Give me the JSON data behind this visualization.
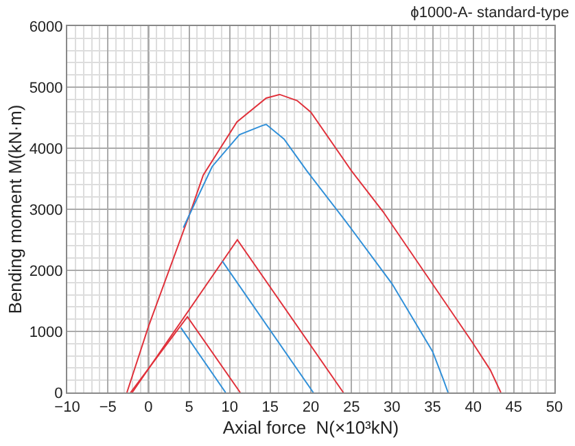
{
  "chart_data": {
    "type": "line",
    "title": "ϕ1000-A- standard-type",
    "xlabel": "Axial force  N(×10³kN)",
    "ylabel": "Bending moment M(kN·m)",
    "xlim": [
      -10,
      50
    ],
    "xticks": [
      -10,
      -5,
      0,
      5,
      10,
      15,
      20,
      25,
      30,
      35,
      40,
      45,
      50
    ],
    "ylim": [
      0,
      6000
    ],
    "yticks": [
      0,
      1000,
      2000,
      3000,
      4000,
      5000,
      6000
    ],
    "grid": true,
    "marker": "none",
    "line_style": "solid",
    "ref_lines": [
      {
        "axis": "x",
        "value": 0,
        "color": "#333333"
      }
    ],
    "series": [
      {
        "color": "#e0303a",
        "x": [
          -2.65,
          0,
          5.4,
          6.75,
          10.9,
          14.5,
          16.15,
          18.3,
          20,
          25,
          28.9,
          39.9,
          42.1,
          43.4
        ],
        "values": [
          0,
          1080,
          3040,
          3560,
          4430,
          4820,
          4880,
          4780,
          4590,
          3630,
          2960,
          820,
          370,
          0
        ]
      },
      {
        "color": "#2f8fd8",
        "x": [
          4.3,
          7.85,
          11.2,
          14,
          14.5,
          16.7,
          19.5,
          24.2,
          30,
          35,
          36.3,
          36.9
        ],
        "values": [
          2700,
          3700,
          4220,
          4370,
          4390,
          4150,
          3630,
          2820,
          1780,
          670,
          220,
          0
        ]
      },
      {
        "color": "#e0303a",
        "x": [
          -2,
          10.95,
          24
        ],
        "values": [
          0,
          2500,
          0
        ]
      },
      {
        "color": "#2f8fd8",
        "x": [
          9.1,
          20.3
        ],
        "values": [
          2150,
          0
        ]
      },
      {
        "color": "#e0303a",
        "x": [
          -2.2,
          4.8,
          11.3
        ],
        "values": [
          0,
          1240,
          0
        ]
      },
      {
        "color": "#2f8fd8",
        "x": [
          4,
          9.5
        ],
        "values": [
          1060,
          0
        ]
      }
    ]
  }
}
